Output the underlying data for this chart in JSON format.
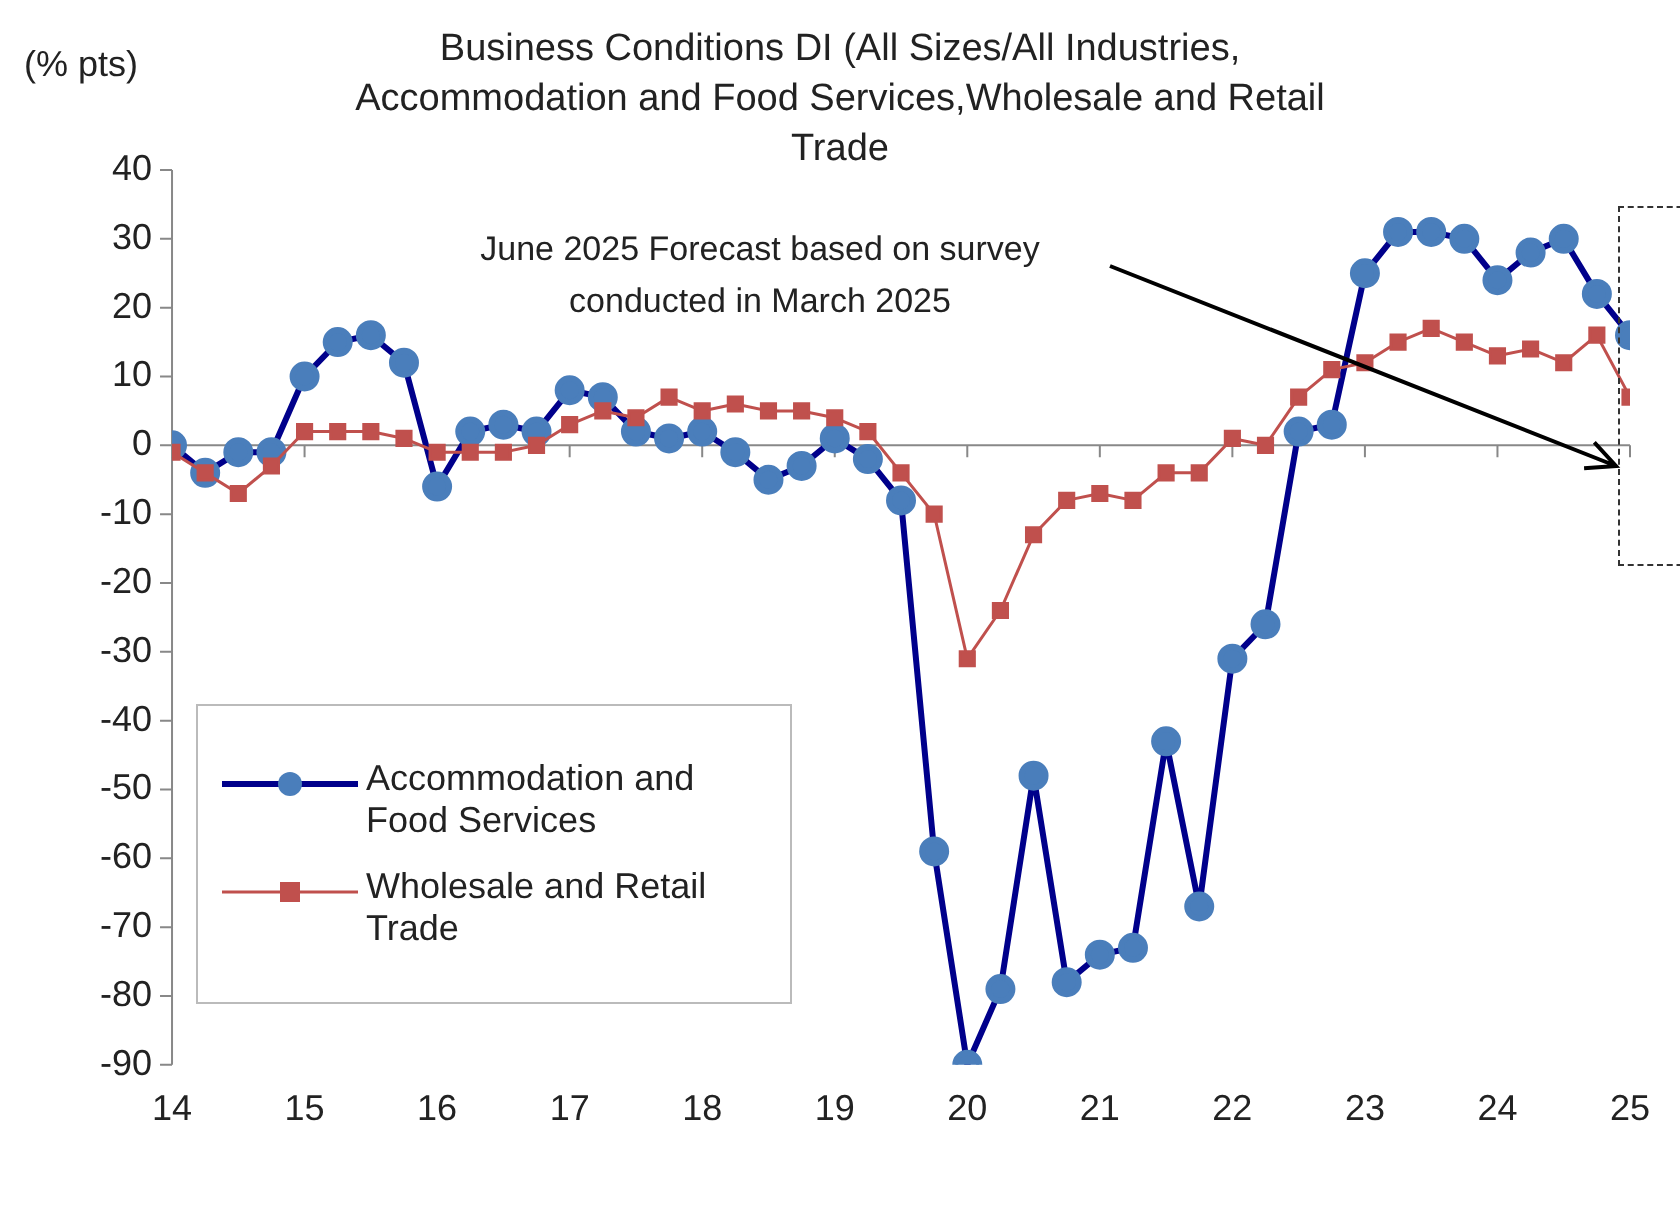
{
  "chart_data": {
    "type": "line",
    "title": "Business Conditions DI (All Sizes/All Industries, Accommodation and Food Services,Wholesale and Retail Trade",
    "ylabel": "(% pts)",
    "x": [
      14,
      14.25,
      14.5,
      14.75,
      15,
      15.25,
      15.5,
      15.75,
      16,
      16.25,
      16.5,
      16.75,
      17,
      17.25,
      17.5,
      17.75,
      18,
      18.25,
      18.5,
      18.75,
      19,
      19.25,
      19.5,
      19.75,
      20,
      20.25,
      20.5,
      20.75,
      21,
      21.25,
      21.5,
      21.75,
      22,
      22.25,
      22.5,
      22.75,
      23,
      23.25,
      23.5,
      23.75,
      24,
      24.25,
      24.5,
      24.75,
      25
    ],
    "series": [
      {
        "name": "Accommodation and Food Services",
        "color": "#4a7ebb",
        "marker": "circle",
        "values": [
          0,
          -4,
          -1,
          -1,
          10,
          15,
          16,
          12,
          -6,
          2,
          3,
          2,
          8,
          7,
          2,
          1,
          2,
          -1,
          -5,
          -3,
          1,
          -2,
          -8,
          -59,
          -90,
          -79,
          -48,
          -78,
          -74,
          -73,
          -43,
          -67,
          -31,
          -26,
          2,
          3,
          25,
          31,
          31,
          30,
          24,
          28,
          30,
          22,
          16
        ]
      },
      {
        "name": "Wholesale and Retail Trade",
        "color": "#c0504d",
        "marker": "square",
        "values": [
          -1,
          -4,
          -7,
          -3,
          2,
          2,
          2,
          1,
          -1,
          -1,
          -1,
          0,
          3,
          5,
          4,
          7,
          5,
          6,
          5,
          5,
          4,
          2,
          -4,
          -10,
          -31,
          -24,
          -13,
          -8,
          -7,
          -8,
          -4,
          -4,
          1,
          0,
          7,
          11,
          12,
          15,
          17,
          15,
          13,
          14,
          12,
          16,
          7
        ]
      }
    ],
    "xlim": [
      14,
      25
    ],
    "xticks": [
      14,
      15,
      16,
      17,
      18,
      19,
      20,
      21,
      22,
      23,
      24,
      25
    ],
    "ylim": [
      -90,
      40
    ],
    "yticks": [
      -90,
      -80,
      -70,
      -60,
      -50,
      -40,
      -30,
      -20,
      -10,
      0,
      10,
      20,
      30,
      40
    ],
    "annotations": [
      "June 2025 Forecast based on survey conducted in March 2025"
    ],
    "ref_lines": [
      {
        "axis": "y",
        "value": 0,
        "color": "#888888"
      }
    ],
    "grid": false,
    "legend": "bottom left"
  }
}
